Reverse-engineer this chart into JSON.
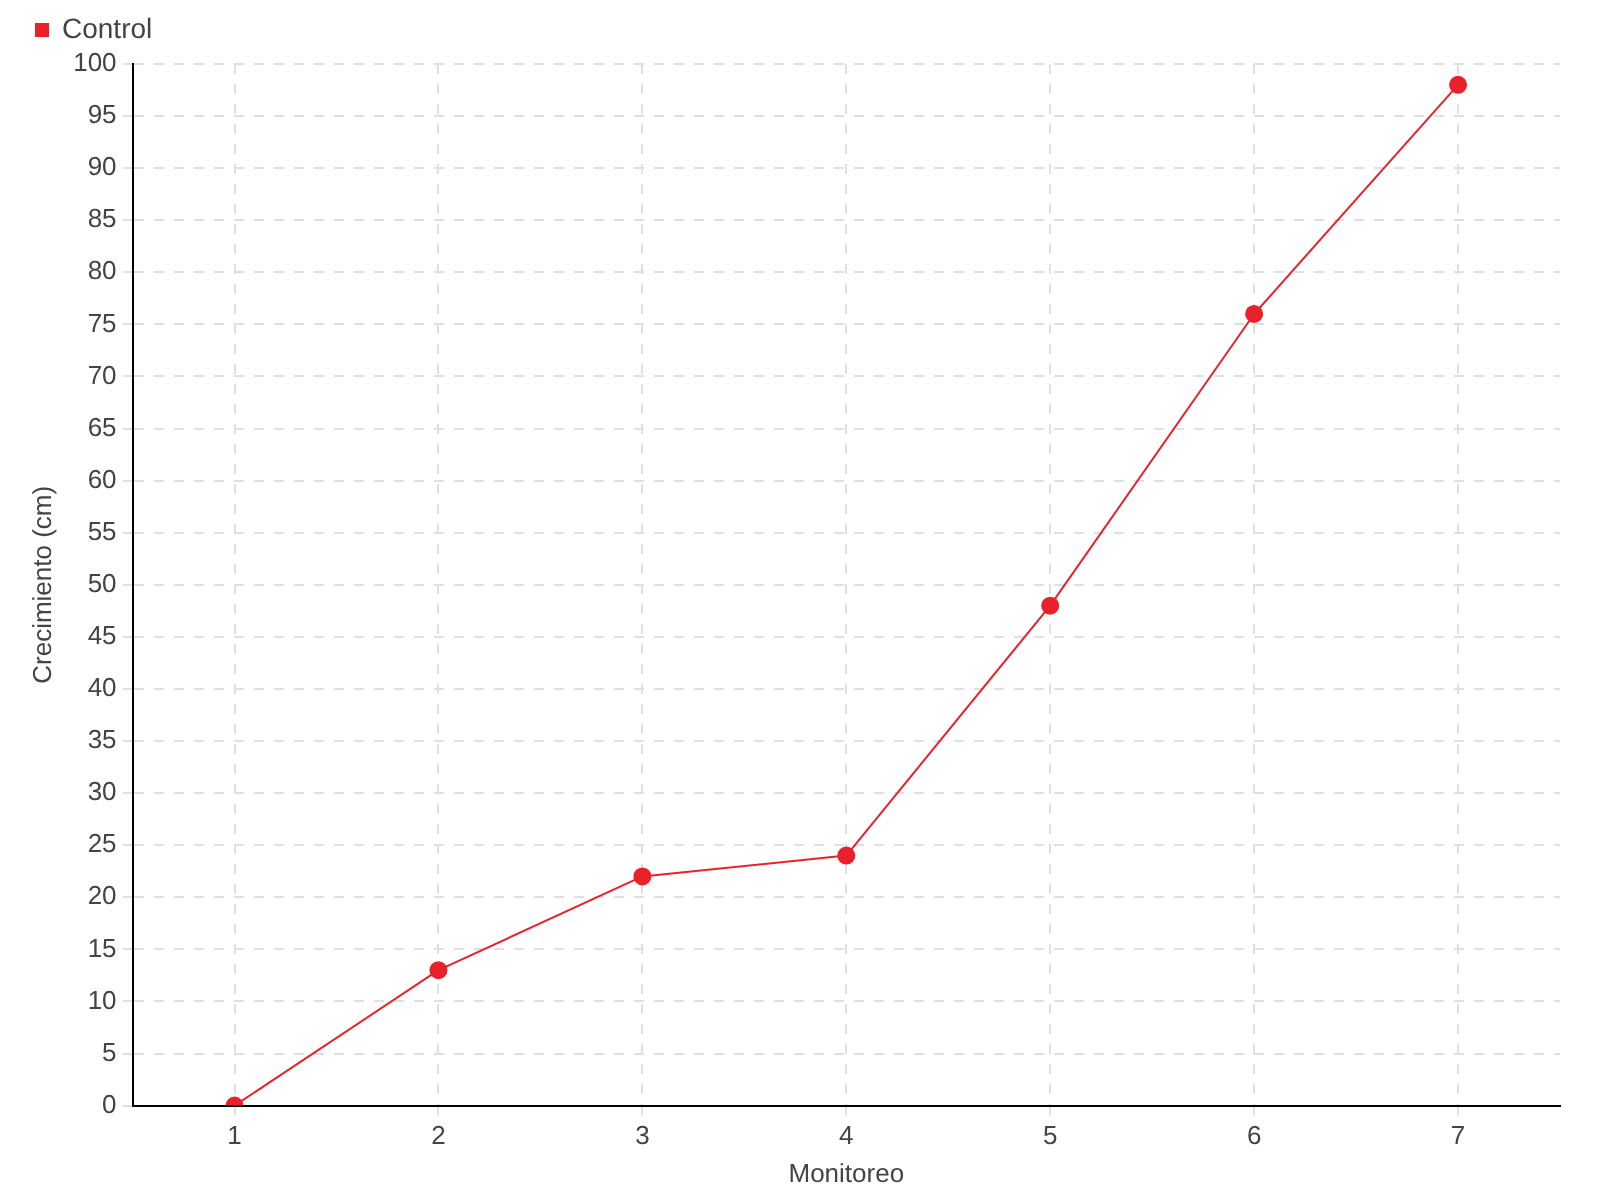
{
  "chart_data": {
    "type": "line",
    "xlabel": "Monitoreo",
    "ylabel": "Crecimiento (cm)",
    "categories": [
      "1",
      "2",
      "3",
      "4",
      "5",
      "6",
      "7"
    ],
    "series": [
      {
        "name": "Control",
        "color": "#e8212b",
        "values": [
          0,
          13,
          22,
          24,
          48,
          76,
          98
        ]
      }
    ],
    "ylim": [
      0,
      100
    ],
    "yticks": [
      0,
      5,
      10,
      15,
      20,
      25,
      30,
      35,
      40,
      45,
      50,
      55,
      60,
      65,
      70,
      75,
      80,
      85,
      90,
      95,
      100
    ],
    "grid": true,
    "legend": "top left",
    "marker": "circle",
    "line_style": "solid"
  }
}
